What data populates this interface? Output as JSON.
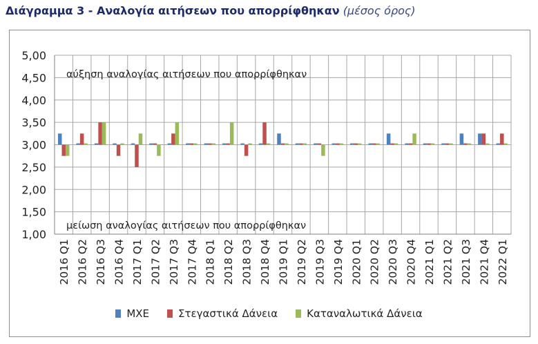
{
  "title": {
    "main": "Διάγραμμα 3 - Αναλογία αιτήσεων που απορρίφθηκαν",
    "sub": "(μέσος όρος)"
  },
  "colors": {
    "series": [
      "#4f81bd",
      "#c0504d",
      "#9bbb59"
    ],
    "grid": "#a6a6a6",
    "axis": "#7f7f7f"
  },
  "chart_data": {
    "type": "bar",
    "title": "",
    "xlabel": "",
    "ylabel": "",
    "ylim": [
      1.0,
      5.0
    ],
    "yticks": [
      "1,00",
      "1,50",
      "2,00",
      "2,50",
      "3,00",
      "3,50",
      "4,00",
      "4,50",
      "5,00"
    ],
    "baseline": 3.0,
    "grid": true,
    "legend_position": "bottom",
    "annotations": [
      {
        "text": "αύξηση αναλογίας αιτήσεων που απορρίφθηκαν",
        "position": "top"
      },
      {
        "text": "μείωση αναλογίας αιτήσεων που απορρίφθηκαν",
        "position": "bottom"
      }
    ],
    "categories": [
      "2016 Q1",
      "2016 Q2",
      "2016 Q3",
      "2016 Q4",
      "2017 Q1",
      "2017 Q2",
      "2017 Q3",
      "2017 Q4",
      "2018 Q1",
      "2018 Q2",
      "2018 Q3",
      "2018 Q4",
      "2019 Q1",
      "2019 Q2",
      "2019 Q3",
      "2019 Q4",
      "2020 Q1",
      "2020 Q2",
      "2020 Q3",
      "2020 Q4",
      "2021 Q1",
      "2021 Q2",
      "2021 Q3",
      "2021 Q4",
      "2022 Q1"
    ],
    "series": [
      {
        "name": "ΜΧΕ",
        "values": [
          3.25,
          3.03,
          3.03,
          3.03,
          3.03,
          3.03,
          3.03,
          3.03,
          3.03,
          3.03,
          3.03,
          3.03,
          3.25,
          3.03,
          3.03,
          3.03,
          3.03,
          3.03,
          3.25,
          3.03,
          3.03,
          3.03,
          3.25,
          3.25,
          3.03
        ]
      },
      {
        "name": "Στεγαστικά Δάνεια",
        "values": [
          2.75,
          3.25,
          3.5,
          2.75,
          2.5,
          3.03,
          3.25,
          3.03,
          3.03,
          3.03,
          2.75,
          3.5,
          3.03,
          3.03,
          3.03,
          3.03,
          3.03,
          3.03,
          3.03,
          3.03,
          3.03,
          3.03,
          3.03,
          3.25,
          3.25
        ]
      },
      {
        "name": "Καταναλωτικά Δάνεια",
        "values": [
          2.75,
          3.03,
          3.5,
          3.03,
          3.25,
          2.75,
          3.5,
          3.03,
          3.03,
          3.5,
          3.03,
          3.03,
          3.03,
          3.03,
          2.75,
          3.03,
          3.03,
          3.03,
          3.03,
          3.25,
          3.03,
          3.03,
          3.03,
          3.03,
          3.03
        ]
      }
    ]
  }
}
